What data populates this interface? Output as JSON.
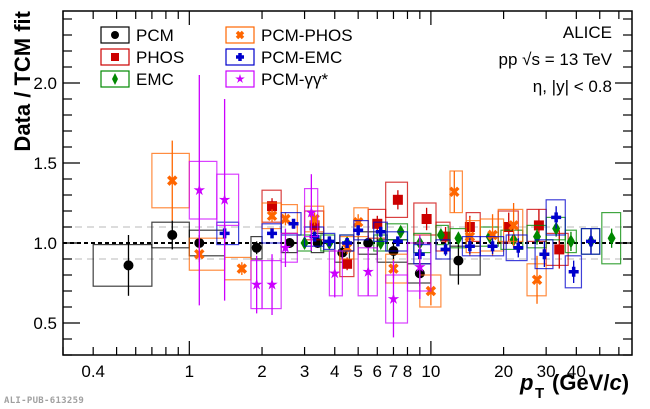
{
  "watermark": "ALI-PUB-613259",
  "chart_data": {
    "type": "scatter",
    "title": "",
    "xlabel": "p_T (GeV/c)",
    "ylabel": "Data / TCM fit",
    "xscale": "log",
    "xlim": [
      0.3,
      68
    ],
    "ylim": [
      0.3,
      2.45
    ],
    "x_tick_labels": [
      "0.4",
      "1",
      "2",
      "3",
      "4",
      "5",
      "6",
      "7",
      "8",
      "10",
      "20",
      "30",
      "40"
    ],
    "x_tick_values": [
      0.4,
      1,
      2,
      3,
      4,
      5,
      6,
      7,
      8,
      10,
      20,
      30,
      40
    ],
    "y_tick_labels": [
      "0.5",
      "1.0",
      "1.5",
      "2.0"
    ],
    "y_tick_values": [
      0.5,
      1.0,
      1.5,
      2.0
    ],
    "reference_lines": [
      {
        "y": 1.0,
        "style": "dashed-black"
      },
      {
        "y": 1.1,
        "style": "dashed-gray"
      },
      {
        "y": 0.9,
        "style": "dashed-gray"
      }
    ],
    "legend_placement": "top-left",
    "annotations": [
      "ALICE",
      "pp √s = 13 TeV",
      "η, |y| < 0.8"
    ],
    "series": [
      {
        "name": "PCM",
        "color": "#000000",
        "marker": "circle",
        "points": [
          {
            "x": 0.56,
            "y": 0.86,
            "xlo": 0.4,
            "xhi": 0.7,
            "stat": 0.19,
            "sys": 0.13
          },
          {
            "x": 0.85,
            "y": 1.05,
            "xlo": 0.7,
            "xhi": 1.0,
            "stat": 0.09,
            "sys": 0.08
          },
          {
            "x": 1.1,
            "y": 1.0,
            "xlo": 1.0,
            "xhi": 1.4,
            "stat": 0.05,
            "sys": 0.08
          },
          {
            "x": 1.9,
            "y": 0.97,
            "xlo": 1.8,
            "xhi": 2.0,
            "stat": 0.04,
            "sys": 0.07
          },
          {
            "x": 2.6,
            "y": 1.0,
            "xlo": 2.4,
            "xhi": 2.8,
            "stat": 0.03,
            "sys": 0.06
          },
          {
            "x": 3.4,
            "y": 1.0,
            "xlo": 3.2,
            "xhi": 3.6,
            "stat": 0.03,
            "sys": 0.06
          },
          {
            "x": 4.3,
            "y": 0.94,
            "xlo": 4.0,
            "xhi": 4.6,
            "stat": 0.04,
            "sys": 0.06
          },
          {
            "x": 5.5,
            "y": 1.0,
            "xlo": 5.0,
            "xhi": 6.0,
            "stat": 0.05,
            "sys": 0.07
          },
          {
            "x": 7.0,
            "y": 0.95,
            "xlo": 6.0,
            "xhi": 8.0,
            "stat": 0.06,
            "sys": 0.07
          },
          {
            "x": 9.0,
            "y": 0.81,
            "xlo": 8.0,
            "xhi": 10.0,
            "stat": 0.08,
            "sys": 0.06
          },
          {
            "x": 13.0,
            "y": 0.89,
            "xlo": 12.0,
            "xhi": 16.0,
            "stat": 0.15,
            "sys": 0.09
          }
        ]
      },
      {
        "name": "PHOS",
        "color": "#cc0000",
        "marker": "square",
        "points": [
          {
            "x": 2.2,
            "y": 1.23,
            "xlo": 2.0,
            "xhi": 2.4,
            "stat": 0.05,
            "sys": 0.1
          },
          {
            "x": 3.3,
            "y": 1.11,
            "xlo": 3.0,
            "xhi": 3.6,
            "stat": 0.05,
            "sys": 0.09
          },
          {
            "x": 4.5,
            "y": 0.87,
            "xlo": 4.2,
            "xhi": 4.8,
            "stat": 0.04,
            "sys": 0.08
          },
          {
            "x": 6.0,
            "y": 1.12,
            "xlo": 5.5,
            "xhi": 6.5,
            "stat": 0.05,
            "sys": 0.09
          },
          {
            "x": 7.3,
            "y": 1.27,
            "xlo": 6.5,
            "xhi": 8.0,
            "stat": 0.06,
            "sys": 0.11
          },
          {
            "x": 9.6,
            "y": 1.15,
            "xlo": 8.5,
            "xhi": 10.5,
            "stat": 0.07,
            "sys": 0.1
          },
          {
            "x": 11.5,
            "y": 1.04,
            "xlo": 10.5,
            "xhi": 12.0,
            "stat": 0.06,
            "sys": 0.09
          },
          {
            "x": 14.5,
            "y": 1.1,
            "xlo": 14.0,
            "xhi": 16.0,
            "stat": 0.07,
            "sys": 0.09
          },
          {
            "x": 21.0,
            "y": 1.1,
            "xlo": 19.0,
            "xhi": 23.0,
            "stat": 0.09,
            "sys": 0.1
          },
          {
            "x": 28.0,
            "y": 1.11,
            "xlo": 25.0,
            "xhi": 30.0,
            "stat": 0.1,
            "sys": 0.1
          },
          {
            "x": 34.0,
            "y": 0.96,
            "xlo": 30.0,
            "xhi": 37.0,
            "stat": 0.12,
            "sys": 0.1
          }
        ]
      },
      {
        "name": "EMC",
        "color": "#008800",
        "marker": "diamond",
        "points": [
          {
            "x": 3.0,
            "y": 1.0,
            "xlo": 2.8,
            "xhi": 3.2,
            "stat": 0.03,
            "sys": 0.05
          },
          {
            "x": 3.8,
            "y": 1.0,
            "xlo": 3.5,
            "xhi": 4.0,
            "stat": 0.03,
            "sys": 0.05
          },
          {
            "x": 4.5,
            "y": 1.0,
            "xlo": 4.2,
            "xhi": 4.8,
            "stat": 0.03,
            "sys": 0.05
          },
          {
            "x": 6.2,
            "y": 1.0,
            "xlo": 5.8,
            "xhi": 6.6,
            "stat": 0.03,
            "sys": 0.05
          },
          {
            "x": 7.5,
            "y": 1.07,
            "xlo": 6.5,
            "xhi": 8.0,
            "stat": 0.03,
            "sys": 0.05
          },
          {
            "x": 9.0,
            "y": 1.0,
            "xlo": 8.5,
            "xhi": 10.0,
            "stat": 0.03,
            "sys": 0.06
          },
          {
            "x": 11.0,
            "y": 1.05,
            "xlo": 10.5,
            "xhi": 11.8,
            "stat": 0.03,
            "sys": 0.06
          },
          {
            "x": 13.0,
            "y": 1.03,
            "xlo": 12.0,
            "xhi": 14.0,
            "stat": 0.03,
            "sys": 0.06
          },
          {
            "x": 17.5,
            "y": 1.04,
            "xlo": 16.0,
            "xhi": 19.0,
            "stat": 0.03,
            "sys": 0.06
          },
          {
            "x": 22.0,
            "y": 1.02,
            "xlo": 19.5,
            "xhi": 24.0,
            "stat": 0.04,
            "sys": 0.06
          },
          {
            "x": 27.5,
            "y": 1.04,
            "xlo": 25.0,
            "xhi": 30.0,
            "stat": 0.05,
            "sys": 0.07
          },
          {
            "x": 33.0,
            "y": 1.09,
            "xlo": 30.0,
            "xhi": 36.0,
            "stat": 0.05,
            "sys": 0.07
          },
          {
            "x": 38.0,
            "y": 1.01,
            "xlo": 36.0,
            "xhi": 40.0,
            "stat": 0.06,
            "sys": 0.07
          },
          {
            "x": 46.0,
            "y": 1.01,
            "xlo": 42.0,
            "xhi": 50.0,
            "stat": 0.07,
            "sys": 0.08
          },
          {
            "x": 56.0,
            "y": 1.03,
            "xlo": 51.0,
            "xhi": 61.0,
            "stat": 0.06,
            "sys": 0.16
          }
        ]
      },
      {
        "name": "PCM-PHOS",
        "color": "#ff6600",
        "marker": "x",
        "points": [
          {
            "x": 0.85,
            "y": 1.39,
            "xlo": 0.7,
            "xhi": 1.0,
            "stat": 0.25,
            "sys": 0.17
          },
          {
            "x": 1.1,
            "y": 0.93,
            "xlo": 1.0,
            "xhi": 1.4,
            "stat": 0.05,
            "sys": 0.1
          },
          {
            "x": 1.65,
            "y": 0.84,
            "xlo": 1.4,
            "xhi": 1.8,
            "stat": 0.04,
            "sys": 0.07
          },
          {
            "x": 2.2,
            "y": 1.17,
            "xlo": 2.0,
            "xhi": 2.4,
            "stat": 0.04,
            "sys": 0.08
          },
          {
            "x": 2.5,
            "y": 1.15,
            "xlo": 2.4,
            "xhi": 2.8,
            "stat": 0.04,
            "sys": 0.09
          },
          {
            "x": 3.3,
            "y": 1.15,
            "xlo": 3.0,
            "xhi": 3.6,
            "stat": 0.04,
            "sys": 0.08
          },
          {
            "x": 4.5,
            "y": 0.97,
            "xlo": 4.2,
            "xhi": 4.8,
            "stat": 0.04,
            "sys": 0.07
          },
          {
            "x": 5.0,
            "y": 1.13,
            "xlo": 4.8,
            "xhi": 5.5,
            "stat": 0.05,
            "sys": 0.09
          },
          {
            "x": 7.0,
            "y": 0.84,
            "xlo": 6.5,
            "xhi": 8.0,
            "stat": 0.06,
            "sys": 0.09
          },
          {
            "x": 10.0,
            "y": 0.7,
            "xlo": 9.0,
            "xhi": 11.0,
            "stat": 0.09,
            "sys": 0.1
          },
          {
            "x": 12.5,
            "y": 1.32,
            "xlo": 12.0,
            "xhi": 13.5,
            "stat": 0.13,
            "sys": 0.13
          },
          {
            "x": 14.5,
            "y": 1.04,
            "xlo": 14.0,
            "xhi": 16.0,
            "stat": 0.12,
            "sys": 0.1
          },
          {
            "x": 18.0,
            "y": 1.05,
            "xlo": 16.0,
            "xhi": 20.0,
            "stat": 0.13,
            "sys": 0.1
          },
          {
            "x": 22.0,
            "y": 1.11,
            "xlo": 19.0,
            "xhi": 24.0,
            "stat": 0.14,
            "sys": 0.1
          },
          {
            "x": 27.5,
            "y": 0.77,
            "xlo": 25.0,
            "xhi": 30.0,
            "stat": 0.15,
            "sys": 0.1
          }
        ]
      },
      {
        "name": "PCM-EMC",
        "color": "#0000cc",
        "marker": "cross",
        "points": [
          {
            "x": 1.4,
            "y": 1.06,
            "xlo": 1.3,
            "xhi": 1.6,
            "stat": 0.05,
            "sys": 0.07
          },
          {
            "x": 2.2,
            "y": 1.06,
            "xlo": 2.0,
            "xhi": 2.4,
            "stat": 0.03,
            "sys": 0.06
          },
          {
            "x": 2.7,
            "y": 1.12,
            "xlo": 2.4,
            "xhi": 2.9,
            "stat": 0.03,
            "sys": 0.07
          },
          {
            "x": 3.3,
            "y": 1.04,
            "xlo": 3.0,
            "xhi": 3.6,
            "stat": 0.03,
            "sys": 0.06
          },
          {
            "x": 3.8,
            "y": 1.01,
            "xlo": 3.6,
            "xhi": 4.0,
            "stat": 0.03,
            "sys": 0.05
          },
          {
            "x": 4.5,
            "y": 1.0,
            "xlo": 4.2,
            "xhi": 4.8,
            "stat": 0.03,
            "sys": 0.05
          },
          {
            "x": 5.0,
            "y": 1.08,
            "xlo": 4.8,
            "xhi": 5.5,
            "stat": 0.03,
            "sys": 0.06
          },
          {
            "x": 6.2,
            "y": 1.07,
            "xlo": 5.8,
            "xhi": 6.6,
            "stat": 0.03,
            "sys": 0.06
          },
          {
            "x": 7.3,
            "y": 1.01,
            "xlo": 6.5,
            "xhi": 8.0,
            "stat": 0.03,
            "sys": 0.06
          },
          {
            "x": 9.0,
            "y": 0.93,
            "xlo": 8.5,
            "xhi": 10.0,
            "stat": 0.03,
            "sys": 0.06
          },
          {
            "x": 11.5,
            "y": 0.96,
            "xlo": 10.5,
            "xhi": 12.0,
            "stat": 0.04,
            "sys": 0.06
          },
          {
            "x": 14.5,
            "y": 0.98,
            "xlo": 13.5,
            "xhi": 16.0,
            "stat": 0.05,
            "sys": 0.06
          },
          {
            "x": 18.0,
            "y": 0.98,
            "xlo": 16.0,
            "xhi": 20.0,
            "stat": 0.05,
            "sys": 0.06
          },
          {
            "x": 23.0,
            "y": 0.97,
            "xlo": 20.5,
            "xhi": 25.0,
            "stat": 0.06,
            "sys": 0.08
          },
          {
            "x": 29.5,
            "y": 0.93,
            "xlo": 27.0,
            "xhi": 32.0,
            "stat": 0.08,
            "sys": 0.09
          },
          {
            "x": 33.0,
            "y": 1.16,
            "xlo": 30.0,
            "xhi": 36.0,
            "stat": 0.07,
            "sys": 0.11
          },
          {
            "x": 39.0,
            "y": 0.82,
            "xlo": 36.0,
            "xhi": 42.0,
            "stat": 0.07,
            "sys": 0.1
          },
          {
            "x": 46.0,
            "y": 1.01,
            "xlo": 42.0,
            "xhi": 50.0,
            "stat": 0.08,
            "sys": 0.08
          }
        ]
      },
      {
        "name": "PCM-γγ*",
        "color": "#cc00ff",
        "marker": "star",
        "points": [
          {
            "x": 1.1,
            "y": 1.33,
            "xlo": 1.0,
            "xhi": 1.3,
            "stat": 0.72,
            "sys": 0.18
          },
          {
            "x": 1.4,
            "y": 1.27,
            "xlo": 1.3,
            "xhi": 1.6,
            "stat": 0.63,
            "sys": 0.16
          },
          {
            "x": 1.9,
            "y": 0.74,
            "xlo": 1.8,
            "xhi": 2.0,
            "stat": 0.18,
            "sys": 0.15
          },
          {
            "x": 2.2,
            "y": 0.74,
            "xlo": 2.0,
            "xhi": 2.4,
            "stat": 0.19,
            "sys": 0.15
          },
          {
            "x": 2.5,
            "y": 0.97,
            "xlo": 2.4,
            "xhi": 2.8,
            "stat": 0.12,
            "sys": 0.09
          },
          {
            "x": 3.2,
            "y": 1.19,
            "xlo": 3.0,
            "xhi": 3.4,
            "stat": 0.24,
            "sys": 0.15
          },
          {
            "x": 4.0,
            "y": 0.81,
            "xlo": 3.8,
            "xhi": 4.3,
            "stat": 0.15,
            "sys": 0.14
          },
          {
            "x": 5.5,
            "y": 0.82,
            "xlo": 5.0,
            "xhi": 6.0,
            "stat": 0.15,
            "sys": 0.15
          },
          {
            "x": 7.0,
            "y": 0.65,
            "xlo": 6.5,
            "xhi": 8.0,
            "stat": 0.24,
            "sys": 0.15
          },
          {
            "x": 9.0,
            "y": 0.85,
            "xlo": 8.0,
            "xhi": 10.0,
            "stat": 0.2,
            "sys": 0.15
          }
        ]
      }
    ]
  }
}
